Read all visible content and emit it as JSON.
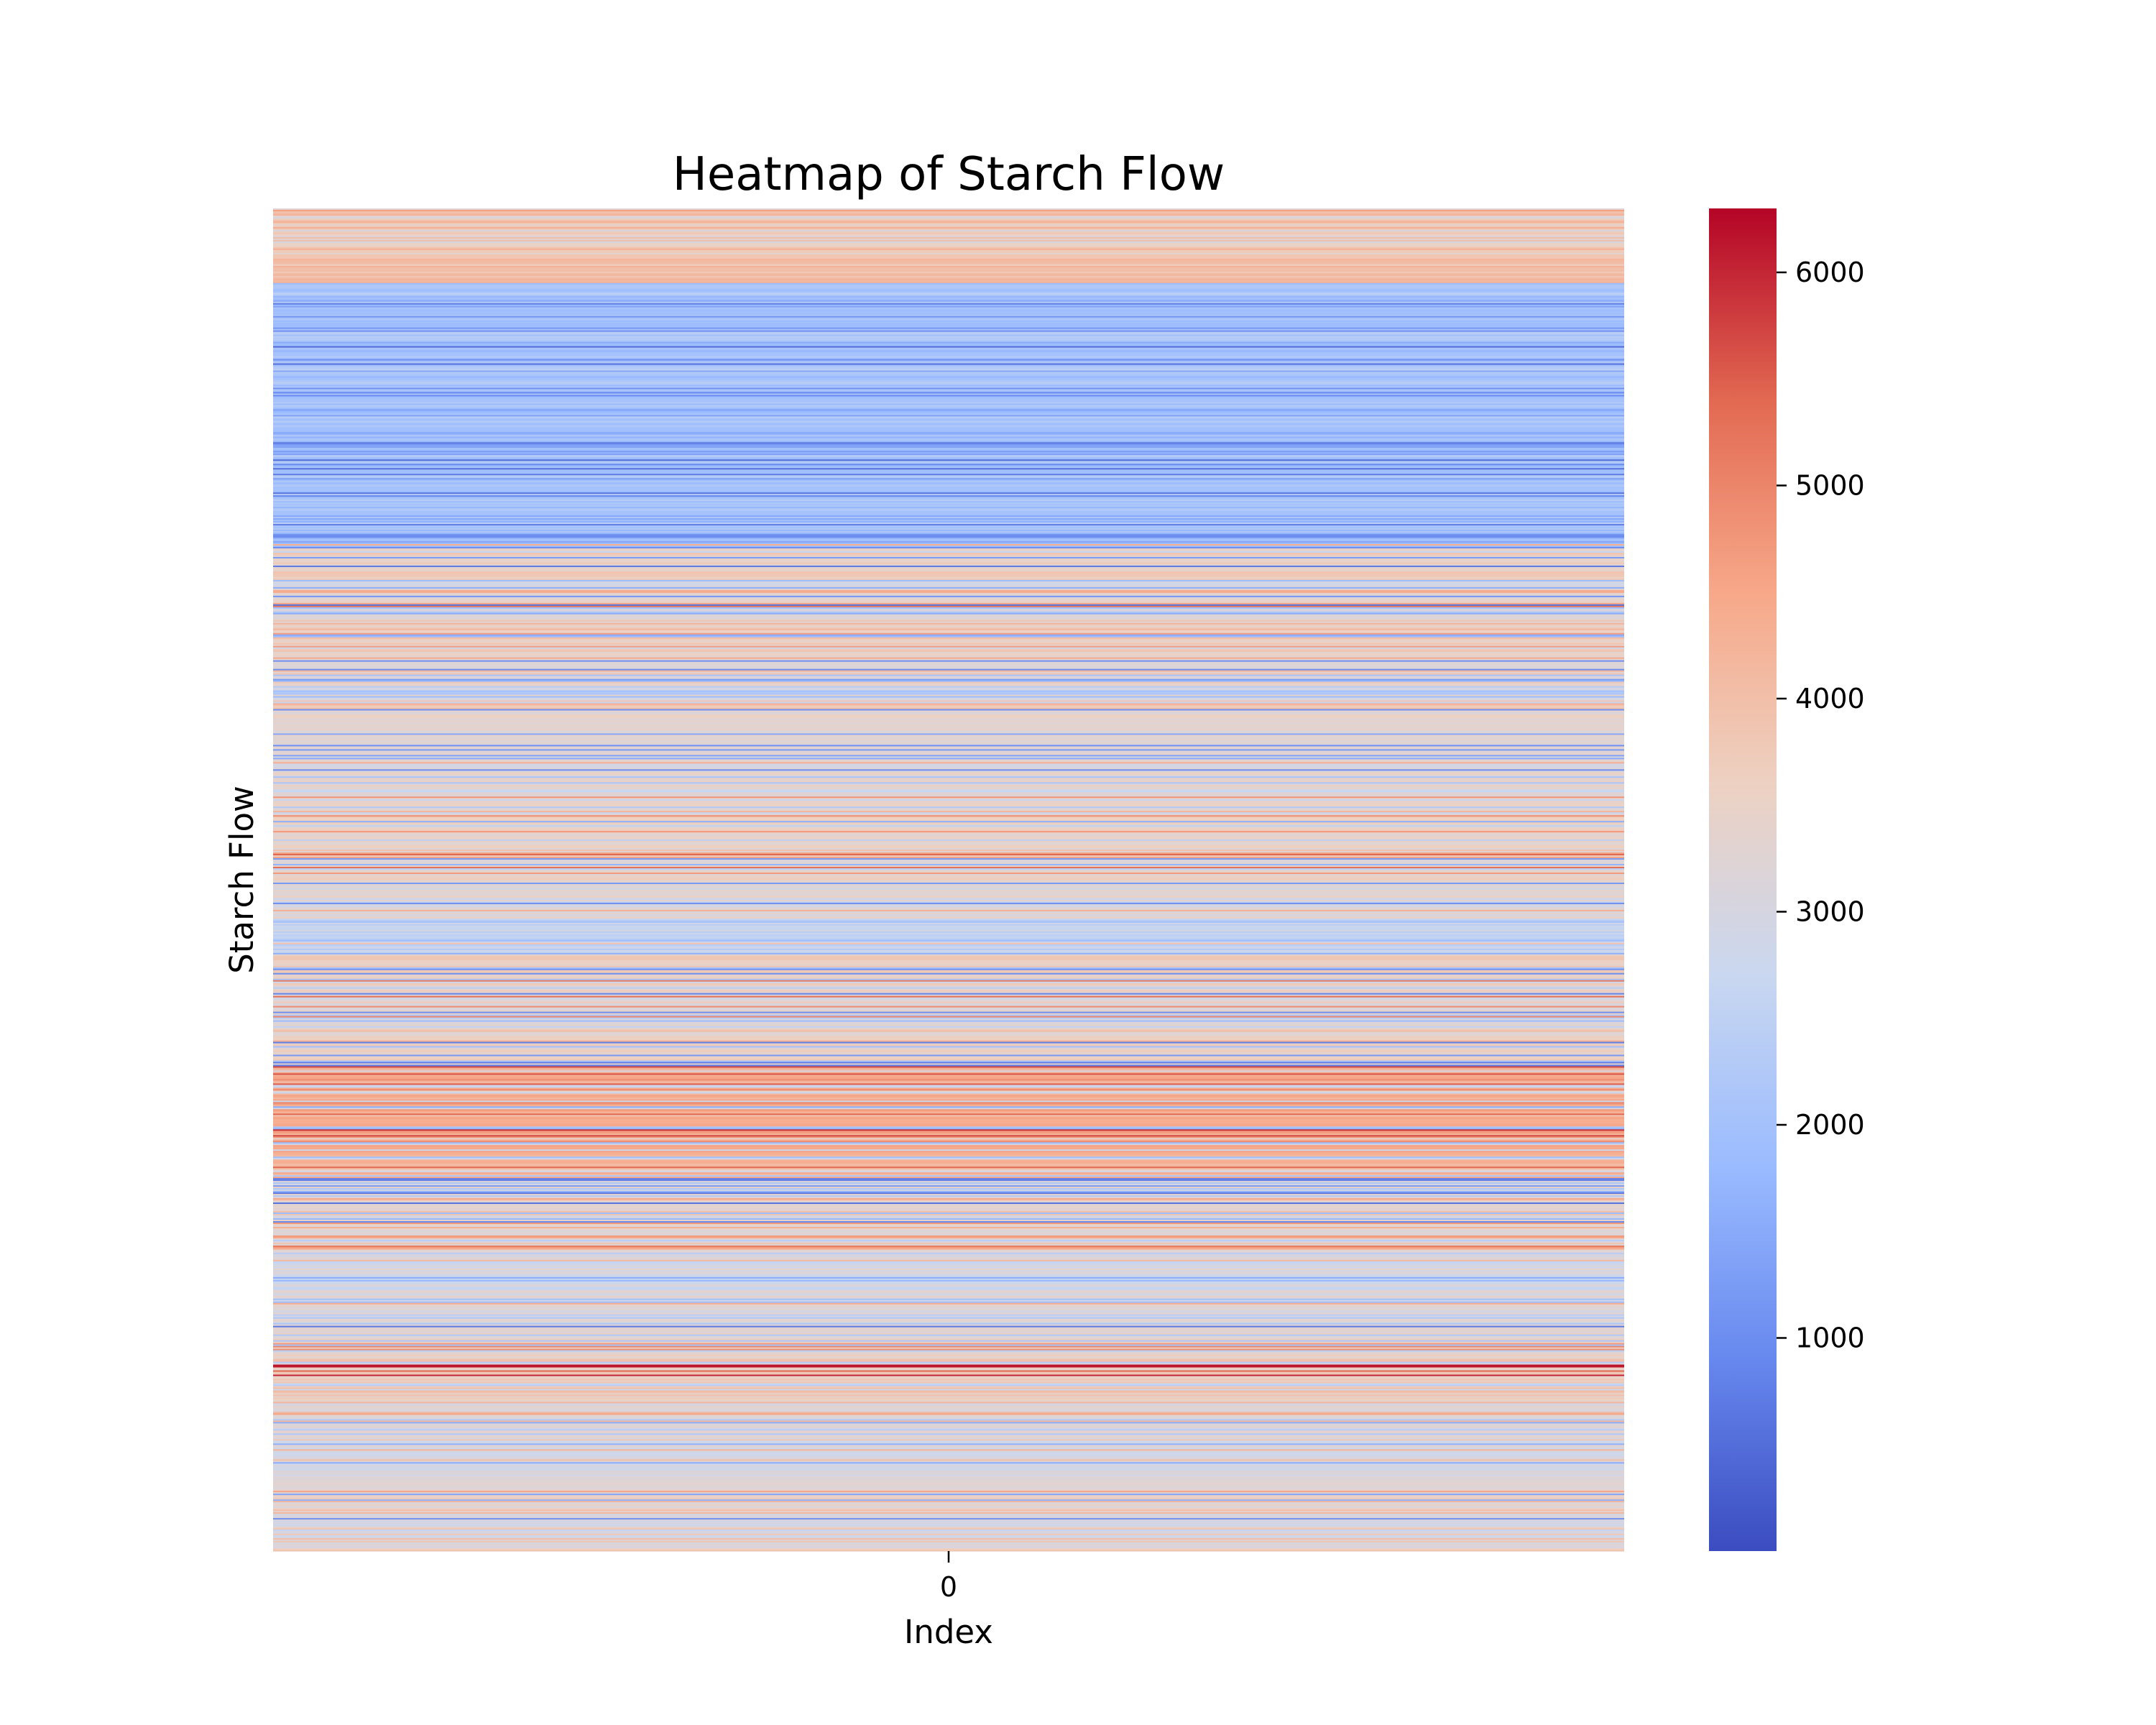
{
  "chart_data": {
    "type": "heatmap",
    "title": "Heatmap of Starch Flow",
    "xlabel": "Index",
    "ylabel": "Starch Flow",
    "x_tick_labels": [
      "0"
    ],
    "y_tick_labels": [],
    "colormap": "coolwarm",
    "colorbar": {
      "range": [
        0,
        6300
      ],
      "ticks": [
        1000,
        2000,
        3000,
        4000,
        5000,
        6000
      ],
      "tick_labels": [
        "1000",
        "2000",
        "3000",
        "4000",
        "5000",
        "6000"
      ],
      "colors": [
        "#3b4cc0",
        "#6788ee",
        "#9abbff",
        "#c9d7f0",
        "#edd1c2",
        "#f7a889",
        "#e26952",
        "#b40426"
      ]
    },
    "segments": [
      {
        "value": 3800,
        "min": 2700,
        "max": 4600
      },
      {
        "value": 4000,
        "min": 3300,
        "max": 4400
      },
      {
        "value": 2000,
        "min": 500,
        "max": 2500
      },
      {
        "value": 2100,
        "min": 400,
        "max": 2500
      },
      {
        "value": 2000,
        "min": 500,
        "max": 2500
      },
      {
        "value": 2100,
        "min": 500,
        "max": 2500
      },
      {
        "value": 2000,
        "min": 400,
        "max": 2500
      },
      {
        "value": 2100,
        "min": 500,
        "max": 2500
      },
      {
        "value": 2000,
        "min": 500,
        "max": 2500
      },
      {
        "value": 3600,
        "min": 600,
        "max": 4600
      },
      {
        "value": 3200,
        "min": 500,
        "max": 5200
      },
      {
        "value": 3500,
        "min": 1500,
        "max": 4800
      },
      {
        "value": 3200,
        "min": 800,
        "max": 4800
      },
      {
        "value": 3400,
        "min": 1000,
        "max": 5000
      },
      {
        "value": 3200,
        "min": 800,
        "max": 4800
      },
      {
        "value": 3400,
        "min": 1000,
        "max": 5200
      },
      {
        "value": 3500,
        "min": 1500,
        "max": 5000
      },
      {
        "value": 3400,
        "min": 1000,
        "max": 5600
      },
      {
        "value": 3200,
        "min": 800,
        "max": 5000
      },
      {
        "value": 2600,
        "min": 600,
        "max": 4600
      },
      {
        "value": 3600,
        "min": 700,
        "max": 5400
      },
      {
        "value": 3200,
        "min": 600,
        "max": 6000
      },
      {
        "value": 3500,
        "min": 700,
        "max": 5200
      },
      {
        "value": 4400,
        "min": 2000,
        "max": 5800
      },
      {
        "value": 4500,
        "min": 1500,
        "max": 6000
      },
      {
        "value": 4300,
        "min": 1500,
        "max": 5500
      },
      {
        "value": 3200,
        "min": 500,
        "max": 5000
      },
      {
        "value": 3300,
        "min": 800,
        "max": 5600
      },
      {
        "value": 3000,
        "min": 1500,
        "max": 4800
      },
      {
        "value": 3200,
        "min": 500,
        "max": 5000
      },
      {
        "value": 3400,
        "min": 2000,
        "max": 5000
      },
      {
        "value": 3700,
        "min": 2200,
        "max": 6300
      },
      {
        "value": 3200,
        "min": 1200,
        "max": 4800
      },
      {
        "value": 3000,
        "min": 1500,
        "max": 4400
      },
      {
        "value": 3300,
        "min": 500,
        "max": 4800
      },
      {
        "value": 3000,
        "min": 900,
        "max": 4500
      }
    ]
  }
}
